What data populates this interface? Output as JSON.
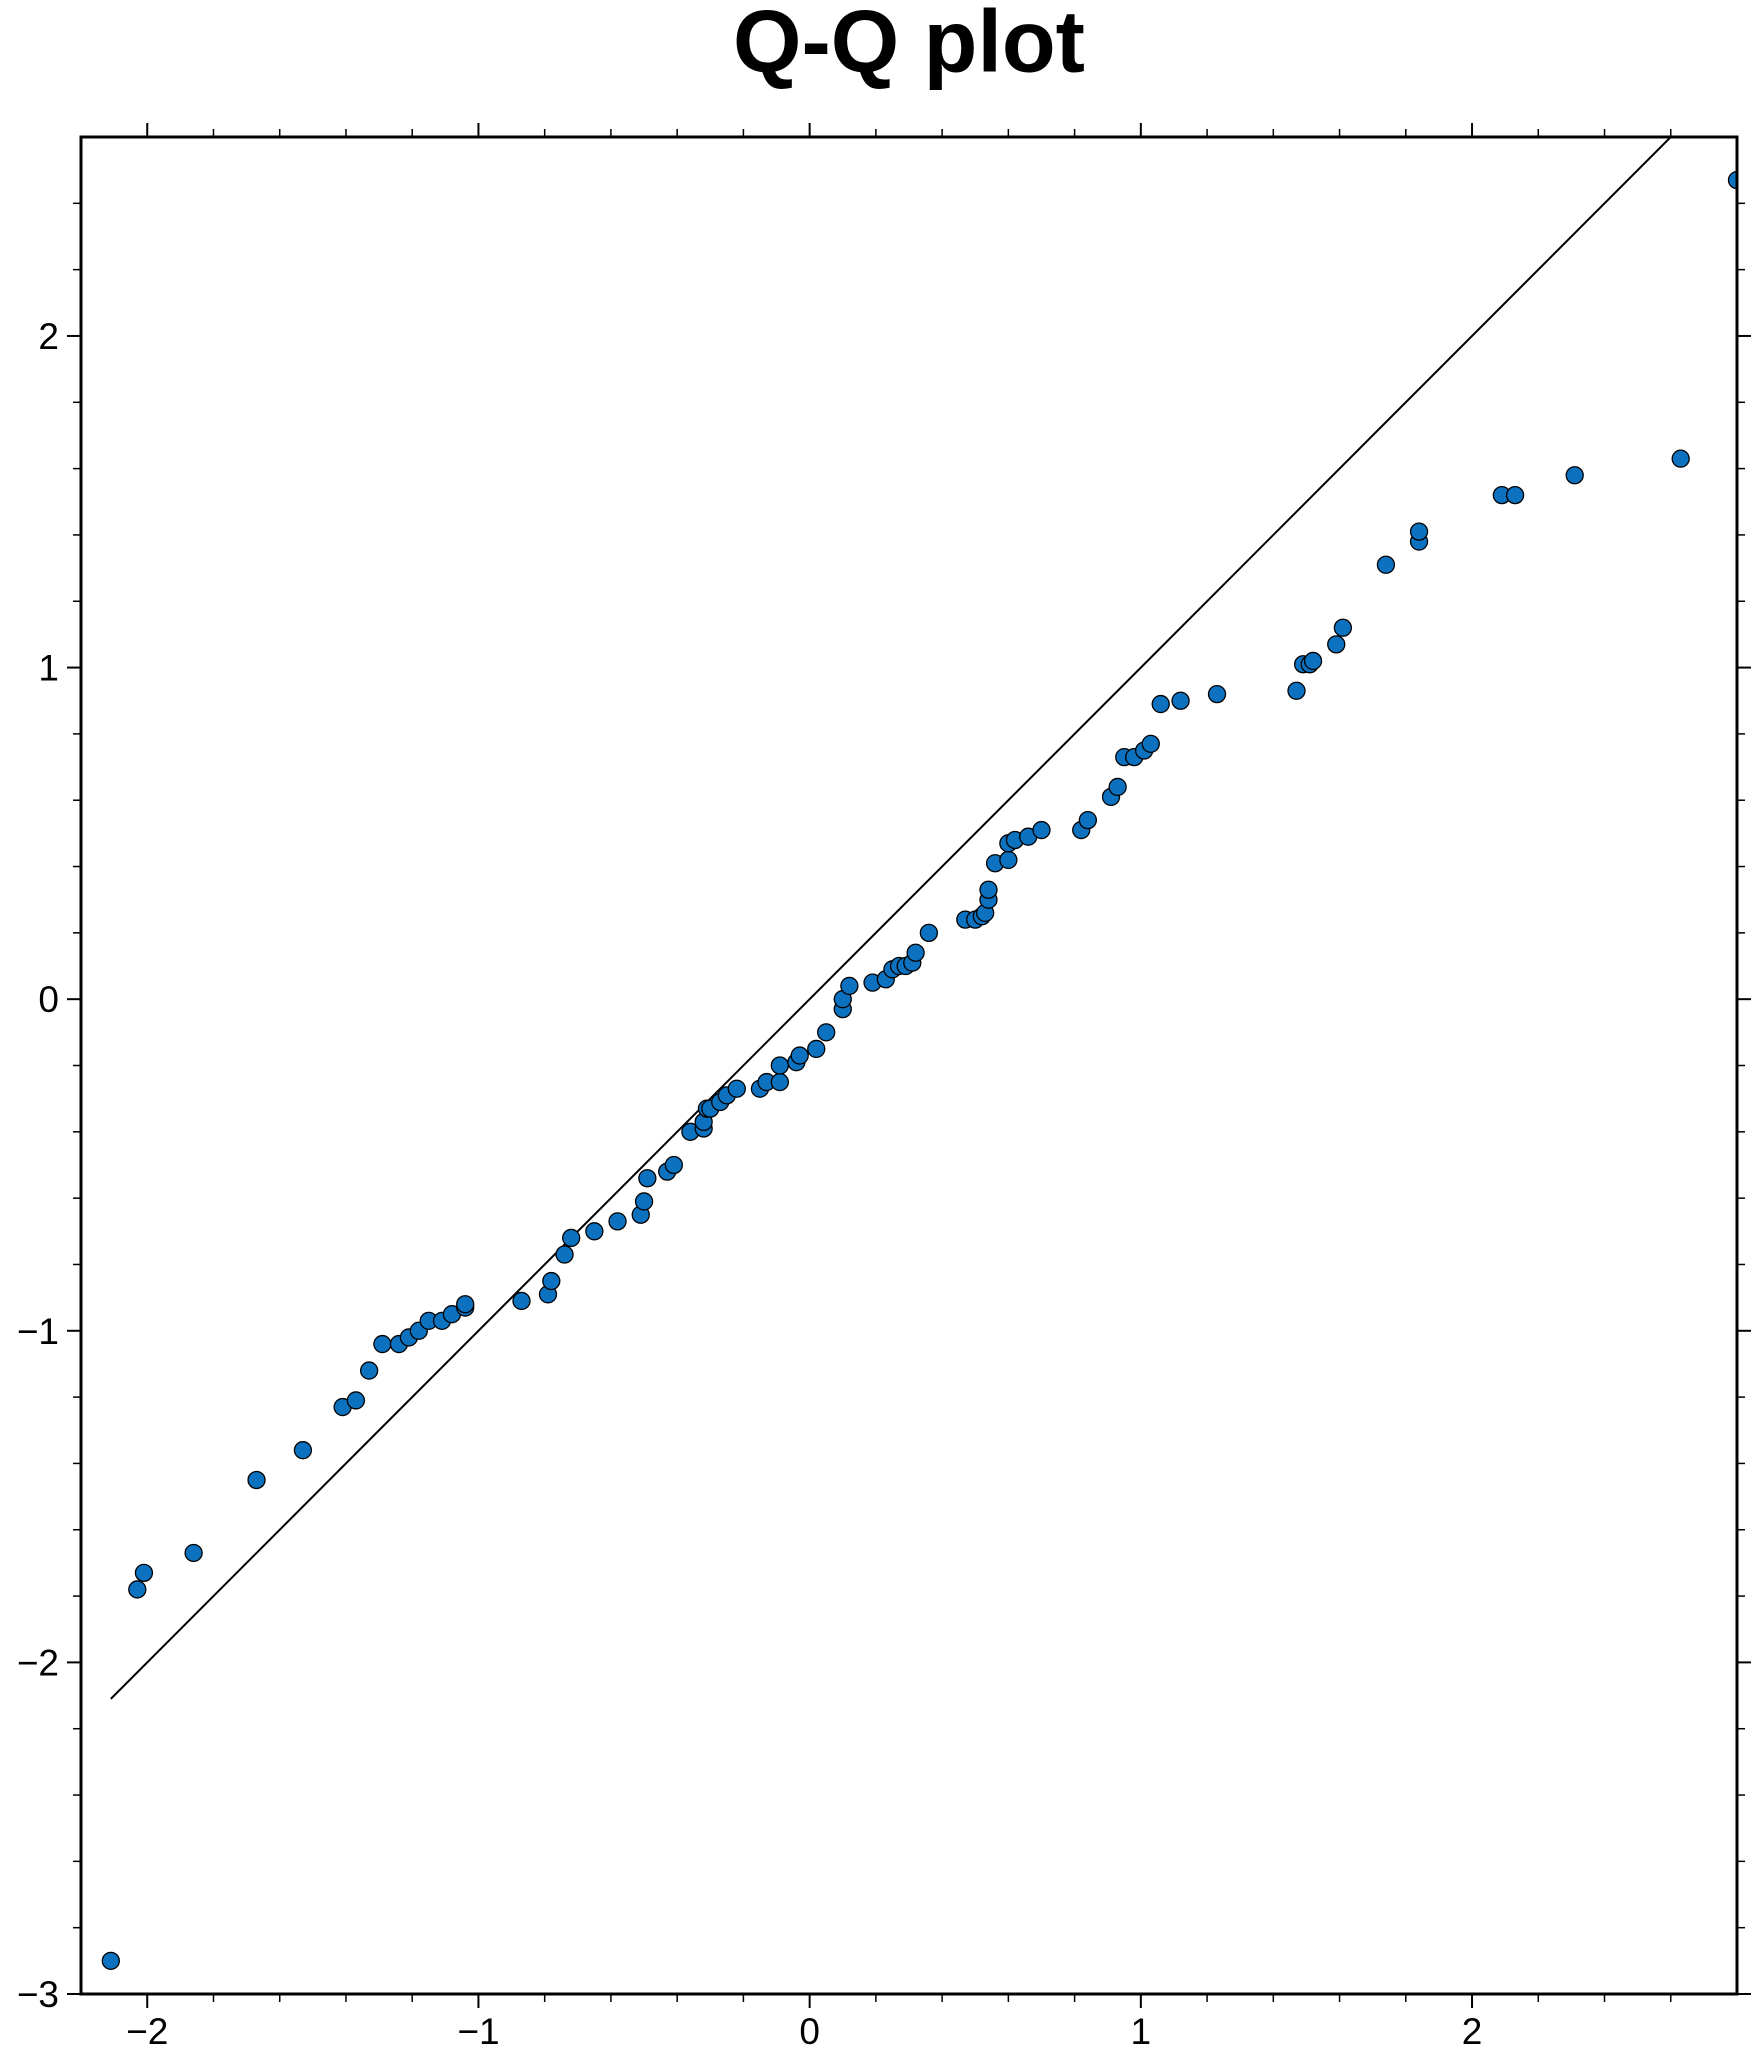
{
  "chart_data": {
    "type": "scatter",
    "title": "Q-Q plot",
    "xlim": [
      -2.2,
      2.8
    ],
    "ylim": [
      -3,
      2.6
    ],
    "xticks": [
      {
        "value": -2,
        "label": "−2"
      },
      {
        "value": -1,
        "label": "−1"
      },
      0,
      1,
      2
    ],
    "yticks": [
      {
        "value": -3,
        "label": "−3"
      },
      {
        "value": -2,
        "label": "−2"
      },
      {
        "value": -1,
        "label": "−1"
      },
      0,
      1,
      2
    ],
    "xminorticks": [
      -1.8,
      -1.6,
      -1.4,
      -1.2,
      -0.8,
      -0.6,
      -0.4,
      -0.2,
      0.2,
      0.4,
      0.6,
      0.8,
      1.2,
      1.4,
      1.6,
      1.8,
      2.2,
      2.4,
      2.6
    ],
    "yminorticks": [
      -2.8,
      -2.6,
      -2.4,
      -2.2,
      -1.8,
      -1.6,
      -1.4,
      -1.2,
      -0.8,
      -0.6,
      -0.4,
      -0.2,
      0.2,
      0.4,
      0.6,
      0.8,
      1.2,
      1.4,
      1.6,
      1.8,
      2.2,
      2.4
    ],
    "reference_line": {
      "x": [
        -2.11,
        2.6
      ],
      "y": [
        -2.11,
        2.6
      ],
      "color": "#000000"
    },
    "series": [
      {
        "color": "#0c72c0",
        "x": [
          -2.11,
          -2.03,
          -2.01,
          -1.86,
          -1.67,
          -1.53,
          -1.41,
          -1.37,
          -1.33,
          -1.29,
          -1.24,
          -1.21,
          -1.18,
          -1.15,
          -1.11,
          -1.08,
          -1.04,
          -1.04,
          -0.87,
          -0.79,
          -0.78,
          -0.74,
          -0.72,
          -0.65,
          -0.58,
          -0.51,
          -0.5,
          -0.49,
          -0.43,
          -0.41,
          -0.36,
          -0.32,
          -0.32,
          -0.31,
          -0.3,
          -0.27,
          -0.25,
          -0.22,
          -0.15,
          -0.13,
          -0.09,
          -0.09,
          -0.04,
          -0.03,
          0.02,
          0.05,
          0.1,
          0.1,
          0.12,
          0.19,
          0.23,
          0.25,
          0.27,
          0.29,
          0.31,
          0.32,
          0.36,
          0.47,
          0.5,
          0.52,
          0.53,
          0.54,
          0.54,
          0.56,
          0.6,
          0.6,
          0.62,
          0.66,
          0.7,
          0.82,
          0.84,
          0.91,
          0.93,
          0.95,
          0.98,
          1.01,
          1.03,
          1.06,
          1.12,
          1.23,
          1.47,
          1.49,
          1.51,
          1.52,
          1.59,
          1.61,
          1.74,
          1.84,
          1.84,
          2.09,
          2.13,
          2.31,
          2.63,
          2.8
        ],
        "values": [
          -2.9,
          -1.78,
          -1.73,
          -1.67,
          -1.45,
          -1.36,
          -1.23,
          -1.21,
          -1.12,
          -1.04,
          -1.04,
          -1.02,
          -1.0,
          -0.97,
          -0.97,
          -0.95,
          -0.93,
          -0.92,
          -0.91,
          -0.89,
          -0.85,
          -0.77,
          -0.72,
          -0.7,
          -0.67,
          -0.65,
          -0.61,
          -0.54,
          -0.52,
          -0.5,
          -0.4,
          -0.39,
          -0.37,
          -0.33,
          -0.33,
          -0.31,
          -0.29,
          -0.27,
          -0.27,
          -0.25,
          -0.25,
          -0.2,
          -0.19,
          -0.17,
          -0.15,
          -0.1,
          -0.03,
          0.0,
          0.04,
          0.05,
          0.06,
          0.09,
          0.1,
          0.1,
          0.11,
          0.14,
          0.2,
          0.24,
          0.24,
          0.25,
          0.26,
          0.3,
          0.33,
          0.41,
          0.42,
          0.47,
          0.48,
          0.49,
          0.51,
          0.51,
          0.54,
          0.61,
          0.64,
          0.73,
          0.73,
          0.75,
          0.77,
          0.89,
          0.9,
          0.92,
          0.93,
          1.01,
          1.01,
          1.02,
          1.07,
          1.12,
          1.31,
          1.38,
          1.41,
          1.52,
          1.52,
          1.58,
          1.63,
          2.47
        ]
      }
    ]
  }
}
